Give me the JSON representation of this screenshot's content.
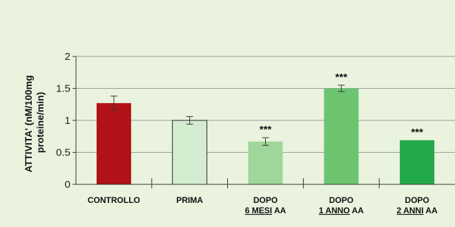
{
  "chart_data": {
    "type": "bar",
    "ylabel_line1": "ATTIVITA' (nM/100mg",
    "ylabel_line2": "proteine/min)",
    "ylim": [
      0,
      2
    ],
    "yticks": [
      {
        "value": 0,
        "label": "0"
      },
      {
        "value": 0.5,
        "label": "0.5"
      },
      {
        "value": 1,
        "label": "1"
      },
      {
        "value": 1.5,
        "label": "1.5"
      },
      {
        "value": 2,
        "label": "2"
      }
    ],
    "grid": true,
    "bars": [
      {
        "line1": "CONTROLLO",
        "line2": null,
        "line2_suffix": null,
        "value": 1.27,
        "error": 0.11,
        "color": "#b01218",
        "outlined": false,
        "significance": ""
      },
      {
        "line1": "PRIMA",
        "line2": null,
        "line2_suffix": null,
        "value": 1.0,
        "error": 0.06,
        "color": "#d4ecd0",
        "outlined": true,
        "significance": ""
      },
      {
        "line1": "DOPO",
        "line2": "6 MESI",
        "line2_suffix": " AA",
        "value": 0.67,
        "error": 0.06,
        "color": "#9fd69a",
        "outlined": false,
        "significance": "***"
      },
      {
        "line1": "DOPO",
        "line2": "1 ANNO",
        "line2_suffix": " AA",
        "value": 1.5,
        "error": 0.05,
        "color": "#6cc470",
        "outlined": false,
        "significance": "***"
      },
      {
        "line1": "DOPO",
        "line2": "2 ANNI",
        "line2_suffix": " AA",
        "value": 0.69,
        "error": 0,
        "color": "#22aa4a",
        "outlined": false,
        "significance": "***"
      }
    ]
  }
}
